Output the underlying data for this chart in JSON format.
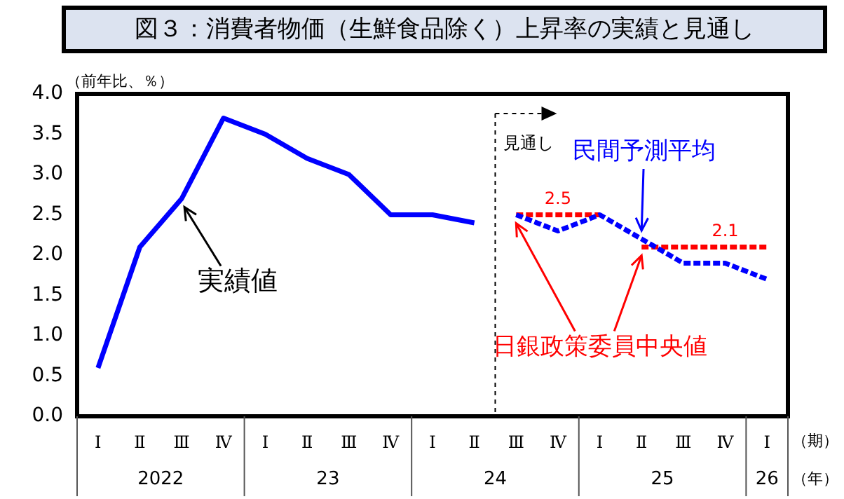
{
  "chart_data": {
    "type": "line",
    "title": "図３：消費者物価（生鮮食品除く）上昇率の実績と見通し",
    "ylabel": "（前年比、％）",
    "categories": [
      "Ⅰ",
      "Ⅱ",
      "Ⅲ",
      "Ⅳ",
      "Ⅰ",
      "Ⅱ",
      "Ⅲ",
      "Ⅳ",
      "Ⅰ",
      "Ⅱ",
      "Ⅲ",
      "Ⅳ",
      "Ⅰ",
      "Ⅱ",
      "Ⅲ",
      "Ⅳ",
      "Ⅰ"
    ],
    "series": [
      {
        "name": "実績値",
        "color": "#0000ff",
        "line_style": "solid",
        "values": [
          0.6,
          2.1,
          2.7,
          3.7,
          3.5,
          3.2,
          3.0,
          2.5,
          2.5,
          2.4,
          null,
          null,
          null,
          null,
          null,
          null,
          null
        ]
      },
      {
        "name": "民間予測平均",
        "color": "#0000ff",
        "line_style": "dashed",
        "values": [
          null,
          null,
          null,
          null,
          null,
          null,
          null,
          null,
          null,
          null,
          2.5,
          2.3,
          2.5,
          2.2,
          1.9,
          1.9,
          1.7
        ]
      },
      {
        "name": "日銀政策委員中央値",
        "color": "#ff0000",
        "line_style": "dashed",
        "values": [
          null,
          null,
          null,
          null,
          null,
          null,
          null,
          null,
          null,
          null,
          2.5,
          2.5,
          2.5,
          null,
          null,
          null,
          null
        ],
        "value_labels": [
          null,
          null,
          null,
          null,
          null,
          null,
          null,
          null,
          null,
          null,
          null,
          "2.5",
          null,
          null,
          null,
          null,
          null
        ]
      },
      {
        "color": "#ff0000",
        "line_style": "dashed",
        "values": [
          null,
          null,
          null,
          null,
          null,
          null,
          null,
          null,
          null,
          null,
          null,
          null,
          null,
          2.1,
          2.1,
          2.1,
          2.1
        ],
        "value_labels": [
          null,
          null,
          null,
          null,
          null,
          null,
          null,
          null,
          null,
          null,
          null,
          null,
          null,
          null,
          null,
          "2.1",
          null
        ]
      }
    ],
    "annotations": [
      "2022",
      "23",
      "24",
      "25",
      "26",
      "（期）",
      "（年）",
      "見通し"
    ],
    "ylim": [
      0,
      4
    ],
    "yticks": [
      {
        "value": 0,
        "label": "0.0"
      },
      {
        "value": 0.5,
        "label": "0.5"
      },
      {
        "value": 1,
        "label": "1.0"
      },
      {
        "value": 1.5,
        "label": "1.5"
      },
      {
        "value": 2,
        "label": "2.0"
      },
      {
        "value": 2.5,
        "label": "2.5"
      },
      {
        "value": 3,
        "label": "3.0"
      },
      {
        "value": 3.5,
        "label": "3.5"
      },
      {
        "value": 4,
        "label": "4.0"
      }
    ],
    "grid": false,
    "legend": false,
    "marker": "none"
  }
}
